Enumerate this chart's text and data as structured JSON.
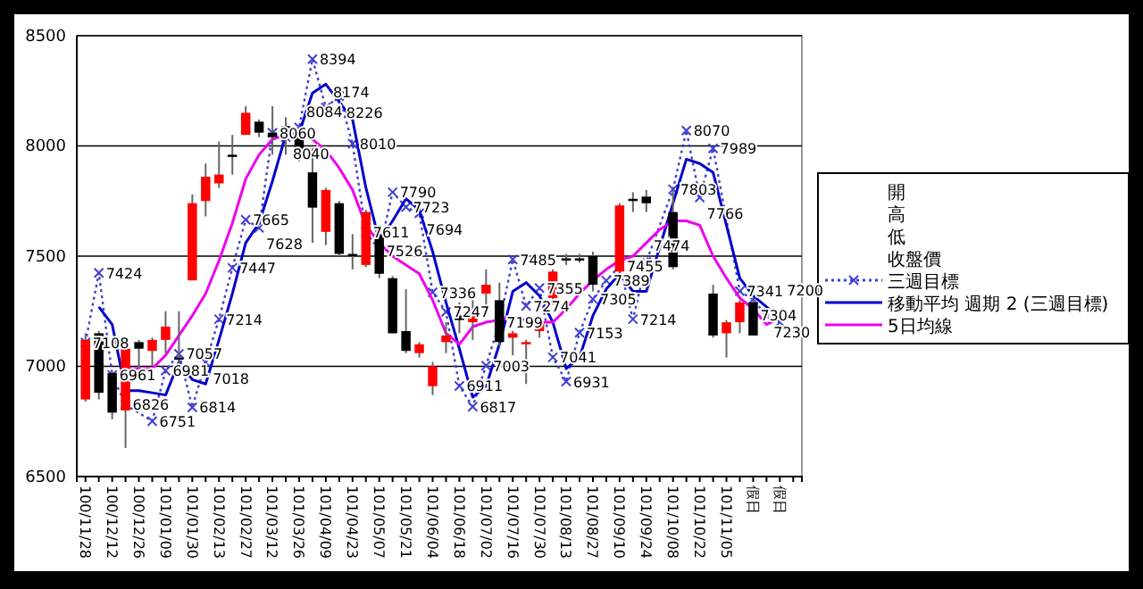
{
  "chart_data": {
    "type": "candlestick",
    "categories": [
      "100/11/28",
      null,
      "100/12/12",
      null,
      "100/12/26",
      null,
      "101/01/09",
      null,
      "101/01/30",
      null,
      "101/02/13",
      null,
      "101/02/27",
      null,
      "101/03/12",
      null,
      "101/03/26",
      null,
      "101/04/09",
      null,
      "101/04/23",
      null,
      "101/05/07",
      null,
      "101/05/21",
      null,
      "101/06/04",
      null,
      "101/06/18",
      null,
      "101/07/02",
      null,
      "101/07/16",
      null,
      "101/07/30",
      null,
      "101/08/13",
      null,
      "101/08/27",
      null,
      "101/09/10",
      null,
      "101/09/24",
      null,
      "101/10/08",
      null,
      "101/10/22",
      null,
      "101/11/05",
      null,
      "假日",
      null,
      "假日",
      null
    ],
    "ohlc": [
      [
        6850,
        7150,
        6840,
        7120
      ],
      [
        7150,
        7160,
        6850,
        6880
      ],
      [
        6970,
        6980,
        6760,
        6790
      ],
      [
        6800,
        7090,
        6630,
        7080
      ],
      [
        7110,
        7120,
        6990,
        7080
      ],
      [
        7070,
        7130,
        7000,
        7120
      ],
      [
        7120,
        7250,
        7060,
        7180
      ],
      [
        7040,
        7250,
        7000,
        7030
      ],
      [
        7390,
        7780,
        7390,
        7740
      ],
      [
        7750,
        7920,
        7680,
        7860
      ],
      [
        7830,
        8020,
        7810,
        7870
      ],
      [
        7960,
        8050,
        7870,
        7950
      ],
      [
        8050,
        8180,
        8050,
        8150
      ],
      [
        8110,
        8120,
        8040,
        8060
      ],
      [
        8060,
        8180,
        7960,
        8040
      ],
      [
        8090,
        8130,
        7960,
        8080
      ],
      [
        8040,
        8080,
        7930,
        7970
      ],
      [
        7880,
        7990,
        7560,
        7720
      ],
      [
        7610,
        7810,
        7550,
        7800
      ],
      [
        7740,
        7750,
        7500,
        7510
      ],
      [
        7510,
        7600,
        7440,
        7500
      ],
      [
        7460,
        7710,
        7450,
        7700
      ],
      [
        7600,
        7630,
        7400,
        7420
      ],
      [
        7400,
        7410,
        7150,
        7150
      ],
      [
        7160,
        7350,
        7060,
        7070
      ],
      [
        7060,
        7110,
        7040,
        7100
      ],
      [
        6910,
        7020,
        6870,
        7000
      ],
      [
        7110,
        7200,
        7060,
        7140
      ],
      [
        7230,
        7290,
        7150,
        7210
      ],
      [
        7200,
        7300,
        7120,
        7240
      ],
      [
        7330,
        7440,
        7280,
        7370
      ],
      [
        7300,
        7380,
        7090,
        7110
      ],
      [
        7130,
        7160,
        7050,
        7150
      ],
      [
        7100,
        7120,
        6920,
        7110
      ],
      [
        7160,
        7230,
        7130,
        7200
      ],
      [
        7310,
        7440,
        7280,
        7430
      ],
      [
        7490,
        7510,
        7460,
        7480
      ],
      [
        7490,
        7510,
        7470,
        7480
      ],
      [
        7500,
        7520,
        7340,
        7370
      ],
      null,
      [
        7430,
        7740,
        7420,
        7730
      ],
      [
        7760,
        7790,
        7700,
        7750
      ],
      [
        7770,
        7800,
        7700,
        7740
      ],
      null,
      [
        7700,
        7800,
        7440,
        7450
      ],
      null,
      null,
      [
        7330,
        7370,
        7130,
        7140
      ],
      [
        7150,
        7210,
        7040,
        7200
      ],
      [
        7200,
        7300,
        7150,
        7290
      ],
      [
        7290,
        7300,
        7140,
        7140
      ],
      null,
      null,
      null
    ],
    "series": [
      {
        "type": "line",
        "name": "三週目標",
        "color": "#4040d0",
        "line_style": "dotted",
        "marker": "cross",
        "values": [
          7108,
          7424,
          6961,
          6826,
          null,
          6751,
          6981,
          7057,
          6814,
          7018,
          7214,
          7447,
          7665,
          7628,
          8060,
          8040,
          8084,
          8394,
          8174,
          8226,
          8010,
          7611,
          7526,
          7790,
          7723,
          7694,
          7336,
          7247,
          6911,
          6817,
          7003,
          7199,
          7485,
          7274,
          7355,
          7041,
          6931,
          7153,
          7305,
          7389,
          7455,
          7214,
          7474,
          null,
          7803,
          8070,
          7766,
          7989,
          null,
          7341,
          7304,
          7230,
          7200,
          null
        ],
        "value_labels": [
          "7108",
          "7424",
          "6961",
          "6826",
          null,
          "6751",
          "6981",
          "7057",
          "6814",
          "7018",
          "7214",
          "7447",
          "7665",
          "7628",
          "8060",
          "8040",
          "8084",
          "8394",
          "8174",
          "8226",
          "8010",
          "7611",
          "7526",
          "7790",
          "7723",
          "7694",
          "7336",
          "7247",
          "6911",
          "6817",
          "7003",
          "7199",
          "7485",
          "7274",
          "7355",
          "7041",
          "6931",
          "7153",
          "7305",
          "7389",
          "7455",
          "7214",
          "7474",
          null,
          "7803",
          "8070",
          "7766",
          "7989",
          null,
          "7341",
          "7304",
          "7230",
          "7200",
          null
        ]
      },
      {
        "type": "line",
        "name": "移動平均 週期 2 (三週目標)",
        "color": "#0000cc",
        "line_style": "solid",
        "marker": "none",
        "values": [
          null,
          7270,
          7190,
          6890,
          6890,
          6880,
          6870,
          7020,
          6940,
          6920,
          7120,
          7330,
          7560,
          7650,
          7840,
          8050,
          8060,
          8240,
          8280,
          8200,
          8120,
          7810,
          7570,
          7660,
          7760,
          7710,
          7520,
          7290,
          7080,
          6860,
          6910,
          7100,
          7340,
          7380,
          7320,
          7200,
          6990,
          7040,
          7230,
          7350,
          7420,
          7340,
          7340,
          null,
          null,
          7940,
          7920,
          7880,
          null,
          7400,
          7320,
          7270,
          7220,
          null
        ]
      },
      {
        "type": "line",
        "name": "5日均線",
        "color": "#ee00ee",
        "line_style": "solid",
        "marker": "none",
        "values": [
          null,
          null,
          null,
          6990,
          6990,
          6990,
          7050,
          7140,
          7230,
          7330,
          7480,
          7650,
          7850,
          7960,
          8030,
          8050,
          8060,
          8030,
          7980,
          7900,
          7800,
          7640,
          7560,
          7500,
          7460,
          7420,
          7300,
          7150,
          7100,
          7180,
          7200,
          7210,
          7220,
          7210,
          7200,
          7200,
          7260,
          7330,
          7390,
          7440,
          7480,
          7500,
          7560,
          7620,
          7660,
          7660,
          7640,
          7500,
          7400,
          7310,
          7260,
          7190,
          7220,
          null
        ]
      }
    ],
    "ylim": [
      6500,
      8500
    ],
    "yticks": [
      6500,
      7000,
      7500,
      8000,
      8500
    ],
    "grid": "y",
    "legend": "right",
    "annotations": [
      "開",
      "高",
      "低",
      "收盤價"
    ]
  }
}
